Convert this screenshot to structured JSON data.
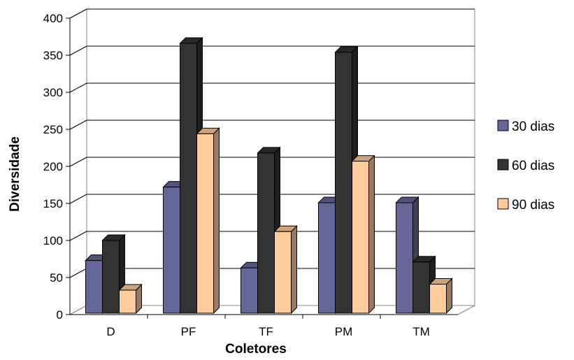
{
  "chart_data": {
    "type": "bar",
    "style": "3d-clustered-column",
    "categories": [
      "D",
      "PF",
      "TF",
      "PM",
      "TM"
    ],
    "series": [
      {
        "name": "30 dias",
        "values": [
          73,
          172,
          63,
          151,
          151
        ],
        "color": "#666699"
      },
      {
        "name": "60 dias",
        "values": [
          100,
          366,
          218,
          354,
          71
        ],
        "color": "#333333"
      },
      {
        "name": "90 dias",
        "values": [
          33,
          244,
          112,
          207,
          41
        ],
        "color": "#FFCC99"
      }
    ],
    "xlabel": "Coletores",
    "ylabel": "Diversidade",
    "ylim": [
      0,
      400
    ],
    "yticks": [
      0,
      50,
      100,
      150,
      200,
      250,
      300,
      350,
      400
    ],
    "grid": true,
    "legend_position": "right"
  }
}
